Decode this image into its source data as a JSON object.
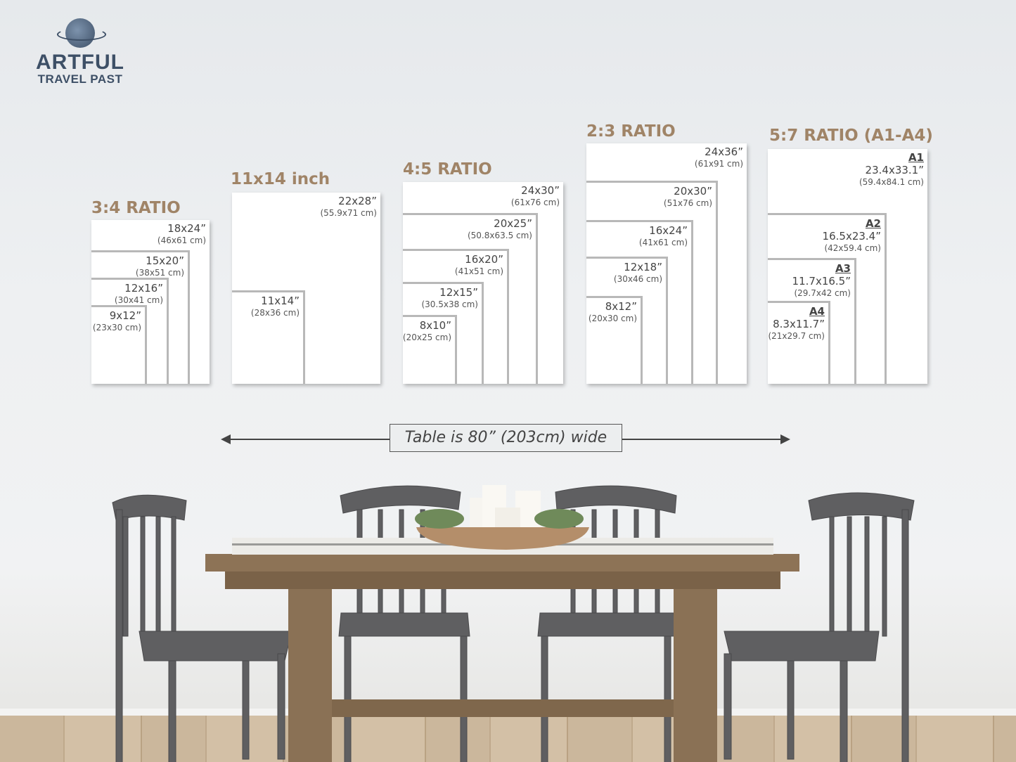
{
  "logo": {
    "line1": "ARTFUL",
    "line2": "TRAVEL PAST",
    "icon": "globe-icon",
    "color": "#3d4f66"
  },
  "accent_color": "#a08467",
  "groups": [
    {
      "title": "3:4 RATIO",
      "sizes": [
        {
          "inches": "18x24”",
          "cm": "(46x61 cm)"
        },
        {
          "inches": "15x20”",
          "cm": "(38x51 cm)"
        },
        {
          "inches": "12x16”",
          "cm": "(30x41 cm)"
        },
        {
          "inches": "9x12”",
          "cm": "(23x30 cm)"
        }
      ]
    },
    {
      "title": "11x14 inch",
      "sizes": [
        {
          "inches": "22x28”",
          "cm": "(55.9x71 cm)"
        },
        {
          "inches": "11x14”",
          "cm": "(28x36 cm)"
        }
      ]
    },
    {
      "title": "4:5 RATIO",
      "sizes": [
        {
          "inches": "24x30”",
          "cm": "(61x76 cm)"
        },
        {
          "inches": "20x25”",
          "cm": "(50.8x63.5 cm)"
        },
        {
          "inches": "16x20”",
          "cm": "(41x51 cm)"
        },
        {
          "inches": "12x15”",
          "cm": "(30.5x38 cm)"
        },
        {
          "inches": "8x10”",
          "cm": "(20x25 cm)"
        }
      ]
    },
    {
      "title": "2:3 RATIO",
      "sizes": [
        {
          "inches": "24x36”",
          "cm": "(61x91 cm)"
        },
        {
          "inches": "20x30”",
          "cm": "(51x76 cm)"
        },
        {
          "inches": "16x24”",
          "cm": "(41x61 cm)"
        },
        {
          "inches": "12x18”",
          "cm": "(30x46 cm)"
        },
        {
          "inches": "8x12”",
          "cm": "(20x30 cm)"
        }
      ]
    },
    {
      "title": "5:7 RATIO (A1-A4)",
      "sizes": [
        {
          "a": "A1",
          "inches": "23.4x33.1”",
          "cm": "(59.4x84.1 cm)"
        },
        {
          "a": "A2",
          "inches": "16.5x23.4”",
          "cm": "(42x59.4 cm)"
        },
        {
          "a": "A3",
          "inches": "11.7x16.5”",
          "cm": "(29.7x42 cm)"
        },
        {
          "a": "A4",
          "inches": "8.3x11.7”",
          "cm": "(21x29.7 cm)"
        }
      ]
    }
  ],
  "table_width_label": "Table is 80” (203cm) wide"
}
